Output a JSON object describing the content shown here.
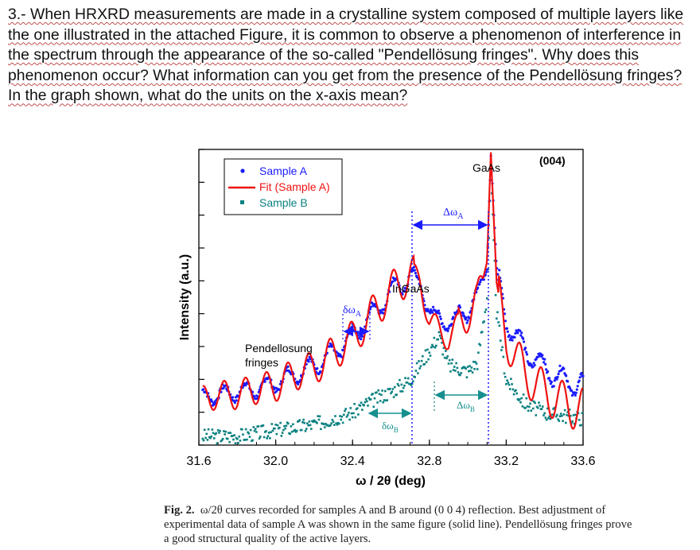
{
  "question": {
    "text": "3.- When HRXRD measurements are made in a crystalline system composed of multiple layers like the one illustrated in the attached Figure, it is common to observe a phenomenon of interference in the spectrum through the appearance of the so-called \"Pendellösung fringes\". Why does this phenomenon occur? What information can you get from the presence of the Pendellösung fringes? In the graph shown, what do the units on the x-axis mean?"
  },
  "figure": {
    "caption_label": "Fig. 2.",
    "caption_text": "ω/2θ curves recorded for samples A and B around (0 0 4) reflection. Best adjustment of experimental data of sample A was shown in the same figure (solid line). Pendellösung fringes prove a good structural quality of the active layers.",
    "annotations": {
      "reflection": "(004)",
      "gaas": "GaAs",
      "ingaas": "InGaAs",
      "pendellosung_1": "Pendellosung",
      "pendellosung_2": "fringes",
      "delta_omega_a": "Δω",
      "delta_omega_a_sub": "A",
      "delta_omega_b": "Δω",
      "delta_omega_b_sub": "B",
      "small_delta_omega_a": "δω",
      "small_delta_omega_a_sub": "A",
      "small_delta_omega_b": "δω",
      "small_delta_omega_b_sub": "B"
    },
    "colors": {
      "sample_a": "#1a1aff",
      "fit": "#ee1111",
      "sample_b": "#0b8080",
      "arrow_a": "#1a1aff",
      "arrow_b": "#178f8f"
    }
  },
  "chart_data": {
    "type": "scatter",
    "title": "",
    "xlabel": "ω / 2θ (deg)",
    "ylabel": "Intensity (a.u.)",
    "xlim": [
      31.6,
      33.6
    ],
    "ylim": [
      0,
      1
    ],
    "xticks": [
      "31.6",
      "32.0",
      "32.4",
      "32.8",
      "33.2",
      "33.6"
    ],
    "legend": [
      {
        "label": "Sample A",
        "marker": "dot",
        "color": "#1a1aff"
      },
      {
        "label": "Fit (Sample A)",
        "marker": "line",
        "color": "#ee1111"
      },
      {
        "label": "Sample B",
        "marker": "square",
        "color": "#0b8080"
      }
    ],
    "series": [
      {
        "name": "Sample A",
        "x": [
          31.6,
          31.7,
          31.8,
          31.9,
          32.0,
          32.1,
          32.2,
          32.3,
          32.4,
          32.5,
          32.6,
          32.7,
          32.75,
          32.8,
          32.9,
          33.0,
          33.05,
          33.1,
          33.12,
          33.15,
          33.2,
          33.3,
          33.4,
          33.5,
          33.6
        ],
        "y": [
          0.16,
          0.17,
          0.18,
          0.19,
          0.21,
          0.24,
          0.27,
          0.31,
          0.37,
          0.44,
          0.52,
          0.57,
          0.55,
          0.45,
          0.41,
          0.46,
          0.5,
          0.6,
          0.98,
          0.6,
          0.42,
          0.32,
          0.26,
          0.22,
          0.2
        ]
      },
      {
        "name": "Fit (Sample A)",
        "x": [
          31.6,
          31.7,
          31.8,
          31.9,
          32.0,
          32.1,
          32.2,
          32.3,
          32.4,
          32.5,
          32.6,
          32.7,
          32.75,
          32.8,
          32.9,
          33.0,
          33.05,
          33.1,
          33.12,
          33.15,
          33.2,
          33.3,
          33.4,
          33.5,
          33.6
        ],
        "y": [
          0.15,
          0.17,
          0.17,
          0.19,
          0.2,
          0.24,
          0.26,
          0.31,
          0.36,
          0.44,
          0.52,
          0.58,
          0.56,
          0.42,
          0.36,
          0.45,
          0.48,
          0.62,
          0.99,
          0.55,
          0.36,
          0.24,
          0.18,
          0.14,
          0.12
        ]
      },
      {
        "name": "Sample B",
        "x": [
          31.6,
          31.7,
          31.8,
          31.9,
          32.0,
          32.1,
          32.2,
          32.3,
          32.4,
          32.5,
          32.6,
          32.7,
          32.8,
          32.85,
          32.9,
          33.0,
          33.05,
          33.1,
          33.12,
          33.15,
          33.2,
          33.3,
          33.4,
          33.5,
          33.6
        ],
        "y": [
          0.03,
          0.03,
          0.03,
          0.04,
          0.05,
          0.06,
          0.07,
          0.09,
          0.11,
          0.15,
          0.18,
          0.22,
          0.32,
          0.37,
          0.27,
          0.25,
          0.28,
          0.5,
          0.91,
          0.45,
          0.22,
          0.14,
          0.11,
          0.1,
          0.09
        ]
      }
    ]
  }
}
